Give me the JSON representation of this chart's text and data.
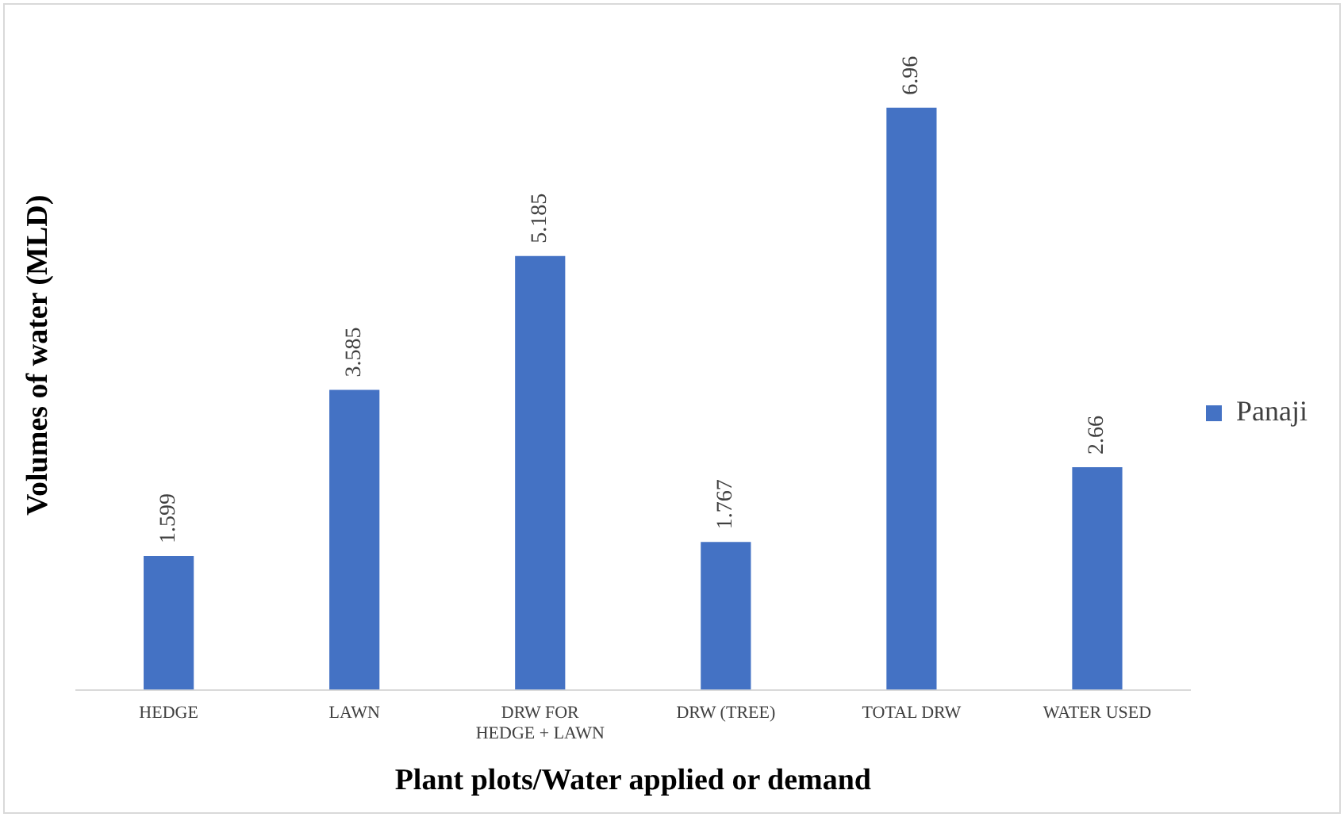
{
  "chart_data": {
    "type": "bar",
    "xlabel": "Plant plots/Water applied or demand",
    "ylabel": "Volumes of water (MLD)",
    "categories": [
      "HEDGE",
      "LAWN",
      "DRW FOR HEDGE + LAWN",
      "DRW (TREE)",
      "TOTAL DRW",
      "WATER USED"
    ],
    "series": [
      {
        "name": "Panaji",
        "color": "#4472c4",
        "values": [
          1.599,
          3.585,
          5.185,
          1.767,
          6.96,
          2.66
        ]
      }
    ],
    "data_labels": true,
    "legend": "right",
    "grid": false
  }
}
